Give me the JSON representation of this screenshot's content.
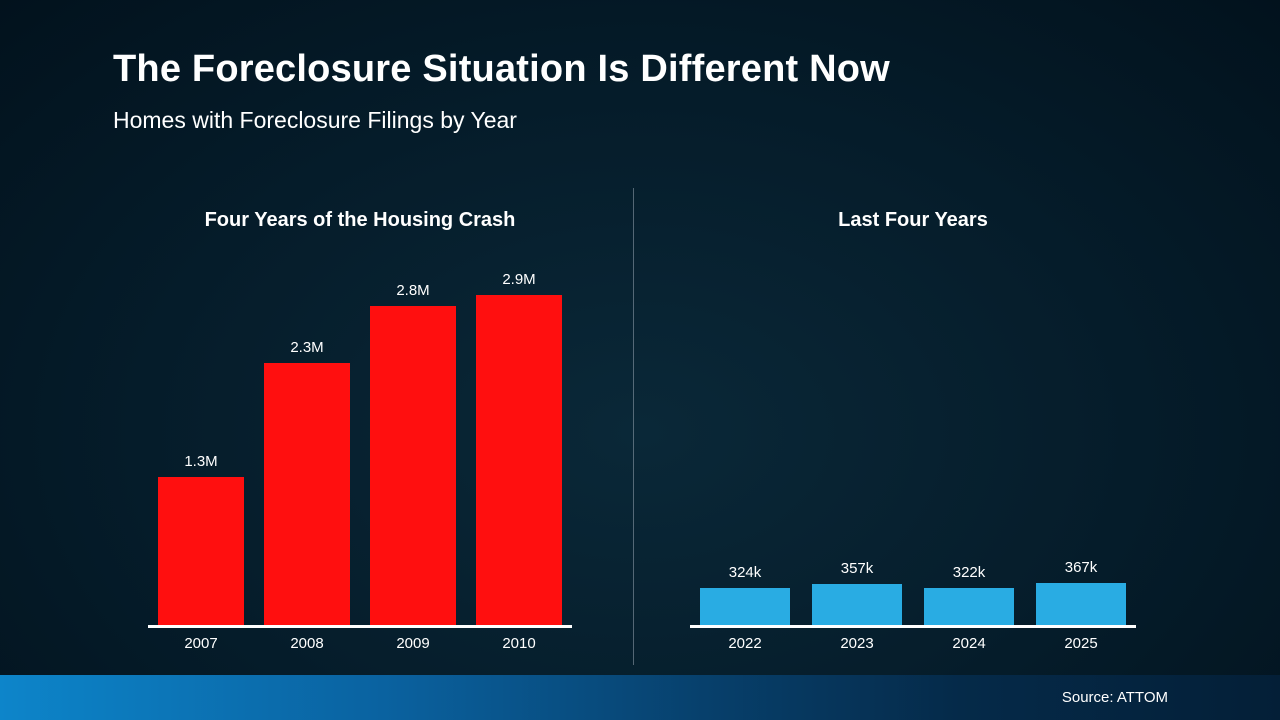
{
  "slide": {
    "title": "The Foreclosure Situation Is Different Now",
    "subtitle": "Homes with Foreclosure Filings by Year",
    "source": "Source: ATTOM"
  },
  "chart_data": [
    {
      "type": "bar",
      "title": "Four Years of the Housing Crash",
      "categories": [
        "2007",
        "2008",
        "2009",
        "2010"
      ],
      "values": [
        1.3,
        2.3,
        2.8,
        2.9
      ],
      "labels": [
        "1.3M",
        "2.3M",
        "2.8M",
        "2.9M"
      ],
      "unit": "millions of homes",
      "bar_color": "#ff0f0f",
      "ylim": [
        0,
        2.9
      ],
      "grid": false,
      "legend": false
    },
    {
      "type": "bar",
      "title": "Last Four Years",
      "categories": [
        "2022",
        "2023",
        "2024",
        "2025"
      ],
      "values": [
        0.324,
        0.357,
        0.322,
        0.367
      ],
      "labels": [
        "324k",
        "357k",
        "322k",
        "367k"
      ],
      "unit": "millions of homes",
      "bar_color": "#29ace3",
      "ylim": [
        0,
        2.9
      ],
      "grid": false,
      "legend": false
    }
  ]
}
